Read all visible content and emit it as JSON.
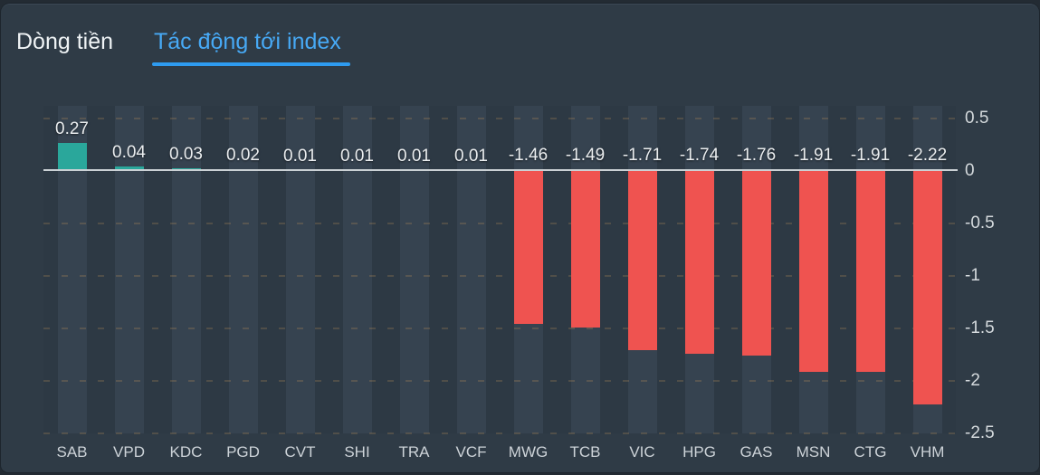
{
  "panel": {
    "tabs": [
      {
        "label": "Dòng tiền"
      },
      {
        "label": "Tác động tới index"
      }
    ]
  },
  "colors": {
    "card_background": "#2F3B46",
    "plot_background": "#2D3944",
    "column_backdrop": "#364350",
    "positive_bar": "#2AA79B",
    "negative_bar": "#EF5350",
    "zero_line": "#CBD1D5",
    "gridline_dash": "rgba(222,165,92,0.20)",
    "inactive_tab": "#EFF3F5",
    "active_tab": "#47A9F5",
    "tab_underline": "#2E9BF0"
  },
  "chart_data": {
    "type": "bar",
    "title": "Tác động tới index",
    "categories": [
      "SAB",
      "VPD",
      "KDC",
      "PGD",
      "CVT",
      "SHI",
      "TRA",
      "VCF",
      "MWG",
      "TCB",
      "VIC",
      "HPG",
      "GAS",
      "MSN",
      "CTG",
      "VHM"
    ],
    "values": [
      0.27,
      0.04,
      0.03,
      0.02,
      0.01,
      0.01,
      0.01,
      0.01,
      -1.46,
      -1.49,
      -1.71,
      -1.74,
      -1.76,
      -1.91,
      -1.91,
      -2.22
    ],
    "value_labels": [
      "0.27",
      "0.04",
      "0.03",
      "0.02",
      "0.01",
      "0.01",
      "0.01",
      "0.01",
      "-1.46",
      "-1.49",
      "-1.71",
      "-1.74",
      "-1.76",
      "-1.91",
      "-1.91",
      "-2.22"
    ],
    "xlabel": "",
    "ylabel": "",
    "ylim": [
      -2.5,
      0.5
    ],
    "yticks": [
      0.5,
      0,
      -0.5,
      -1,
      -1.5,
      -2,
      -2.5
    ],
    "ytick_labels": [
      "0.5",
      "0",
      "-0.5",
      "-1",
      "-1.5",
      "-2",
      "-2.5"
    ],
    "yaxis_position": "right",
    "grid": "horizontal-dashed",
    "legend": "none"
  }
}
